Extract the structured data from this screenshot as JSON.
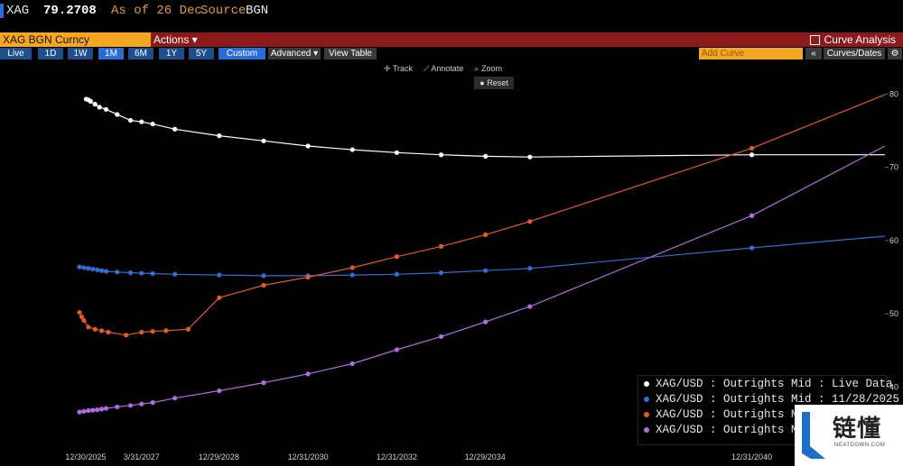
{
  "header": {
    "ticker": "XAG",
    "price": "79.2708",
    "as_of": "As of 26 Dec",
    "source_label": "Source",
    "source_value": "BGN"
  },
  "security": "XAG BGN Curncy",
  "actions_label": "Actions ▾",
  "curve_analysis_label": "Curve Analysis",
  "toolbar": {
    "periods": [
      "Live",
      "1D",
      "1W",
      "1M",
      "6M",
      "1Y",
      "5Y",
      "Custom"
    ],
    "selected_period": "1M",
    "advanced_label": "Advanced ▾",
    "view_table_label": "View Table",
    "add_curve_placeholder": "Add Curve",
    "collapse_label": "«",
    "curves_dates_label": "Curves/Dates",
    "settings_icon": "gear-icon"
  },
  "chart_tools": {
    "track": "Track",
    "annotate": "Annotate",
    "zoom": "Zoom",
    "reset": "Reset"
  },
  "chart_data": {
    "type": "line",
    "title": "",
    "xlabel": "",
    "ylabel": "",
    "x_tick_labels": [
      "12/30/2025",
      "3/31/2027",
      "12/29/2028",
      "12/31/2030",
      "12/31/2032",
      "12/29/2034",
      "12/31/2040"
    ],
    "y_ticks": [
      40,
      50,
      60,
      70,
      80
    ],
    "ylim": [
      36,
      82
    ],
    "axis_position": "right",
    "grid": false,
    "legend_position": "bottom-right",
    "series": [
      {
        "name": "XAG/USD : Outrights Mid : Live Data",
        "color": "#ffffff",
        "points": [
          [
            2026.0,
            79.3
          ],
          [
            2026.05,
            79.2
          ],
          [
            2026.1,
            79.0
          ],
          [
            2026.2,
            78.6
          ],
          [
            2026.3,
            78.2
          ],
          [
            2026.45,
            77.9
          ],
          [
            2026.7,
            77.2
          ],
          [
            2027.0,
            76.4
          ],
          [
            2027.25,
            76.2
          ],
          [
            2027.5,
            75.9
          ],
          [
            2028.0,
            75.2
          ],
          [
            2029.0,
            74.3
          ],
          [
            2030.0,
            73.6
          ],
          [
            2031.0,
            72.9
          ],
          [
            2032.0,
            72.4
          ],
          [
            2033.0,
            72.0
          ],
          [
            2034.0,
            71.7
          ],
          [
            2035.0,
            71.5
          ],
          [
            2036.0,
            71.4
          ],
          [
            2041.0,
            71.7
          ]
        ]
      },
      {
        "name": "XAG/USD : Outrights Mid : 11/28/2025",
        "color": "#2f6fd6",
        "points": [
          [
            2025.85,
            56.4
          ],
          [
            2025.95,
            56.3
          ],
          [
            2026.05,
            56.2
          ],
          [
            2026.15,
            56.1
          ],
          [
            2026.25,
            56.0
          ],
          [
            2026.35,
            55.9
          ],
          [
            2026.45,
            55.8
          ],
          [
            2026.7,
            55.7
          ],
          [
            2027.0,
            55.6
          ],
          [
            2027.25,
            55.55
          ],
          [
            2027.5,
            55.5
          ],
          [
            2028.0,
            55.4
          ],
          [
            2029.0,
            55.3
          ],
          [
            2030.0,
            55.2
          ],
          [
            2031.0,
            55.2
          ],
          [
            2032.0,
            55.3
          ],
          [
            2033.0,
            55.4
          ],
          [
            2034.0,
            55.6
          ],
          [
            2035.0,
            55.9
          ],
          [
            2036.0,
            56.2
          ],
          [
            2041.0,
            59.0
          ]
        ]
      },
      {
        "name": "XAG/USD : Outrights Mid",
        "color": "#e2592c",
        "points": [
          [
            2025.85,
            50.2
          ],
          [
            2025.9,
            49.6
          ],
          [
            2025.95,
            49.1
          ],
          [
            2026.05,
            48.2
          ],
          [
            2026.2,
            47.9
          ],
          [
            2026.35,
            47.7
          ],
          [
            2026.5,
            47.5
          ],
          [
            2026.9,
            47.1
          ],
          [
            2027.25,
            47.5
          ],
          [
            2027.5,
            47.6
          ],
          [
            2027.8,
            47.7
          ],
          [
            2028.3,
            47.9
          ],
          [
            2029.0,
            52.2
          ],
          [
            2030.0,
            53.9
          ],
          [
            2031.0,
            55.0
          ],
          [
            2032.0,
            56.3
          ],
          [
            2033.0,
            57.8
          ],
          [
            2034.0,
            59.2
          ],
          [
            2035.0,
            60.8
          ],
          [
            2036.0,
            62.6
          ],
          [
            2041.0,
            72.6
          ]
        ]
      },
      {
        "name": "XAG/USD : Outrights Mid",
        "color": "#b46be0",
        "points": [
          [
            2025.85,
            36.6
          ],
          [
            2025.95,
            36.7
          ],
          [
            2026.05,
            36.8
          ],
          [
            2026.15,
            36.85
          ],
          [
            2026.25,
            36.9
          ],
          [
            2026.35,
            37.0
          ],
          [
            2026.45,
            37.1
          ],
          [
            2026.7,
            37.3
          ],
          [
            2027.0,
            37.5
          ],
          [
            2027.25,
            37.7
          ],
          [
            2027.5,
            37.9
          ],
          [
            2028.0,
            38.5
          ],
          [
            2029.0,
            39.5
          ],
          [
            2030.0,
            40.6
          ],
          [
            2031.0,
            41.8
          ],
          [
            2032.0,
            43.2
          ],
          [
            2033.0,
            45.1
          ],
          [
            2034.0,
            46.9
          ],
          [
            2035.0,
            48.9
          ],
          [
            2036.0,
            51.0
          ],
          [
            2041.0,
            63.4
          ]
        ]
      }
    ],
    "extrapolation_lines": [
      {
        "series": 0,
        "to": [
          2044.0,
          71.7
        ]
      },
      {
        "series": 1,
        "to": [
          2044.0,
          60.6
        ]
      },
      {
        "series": 2,
        "to": [
          2044.0,
          79.9
        ]
      },
      {
        "series": 3,
        "to": [
          2044.0,
          72.9
        ]
      }
    ]
  },
  "watermark": {
    "text": "链懂",
    "sub": "NEATDOWN.COM"
  }
}
